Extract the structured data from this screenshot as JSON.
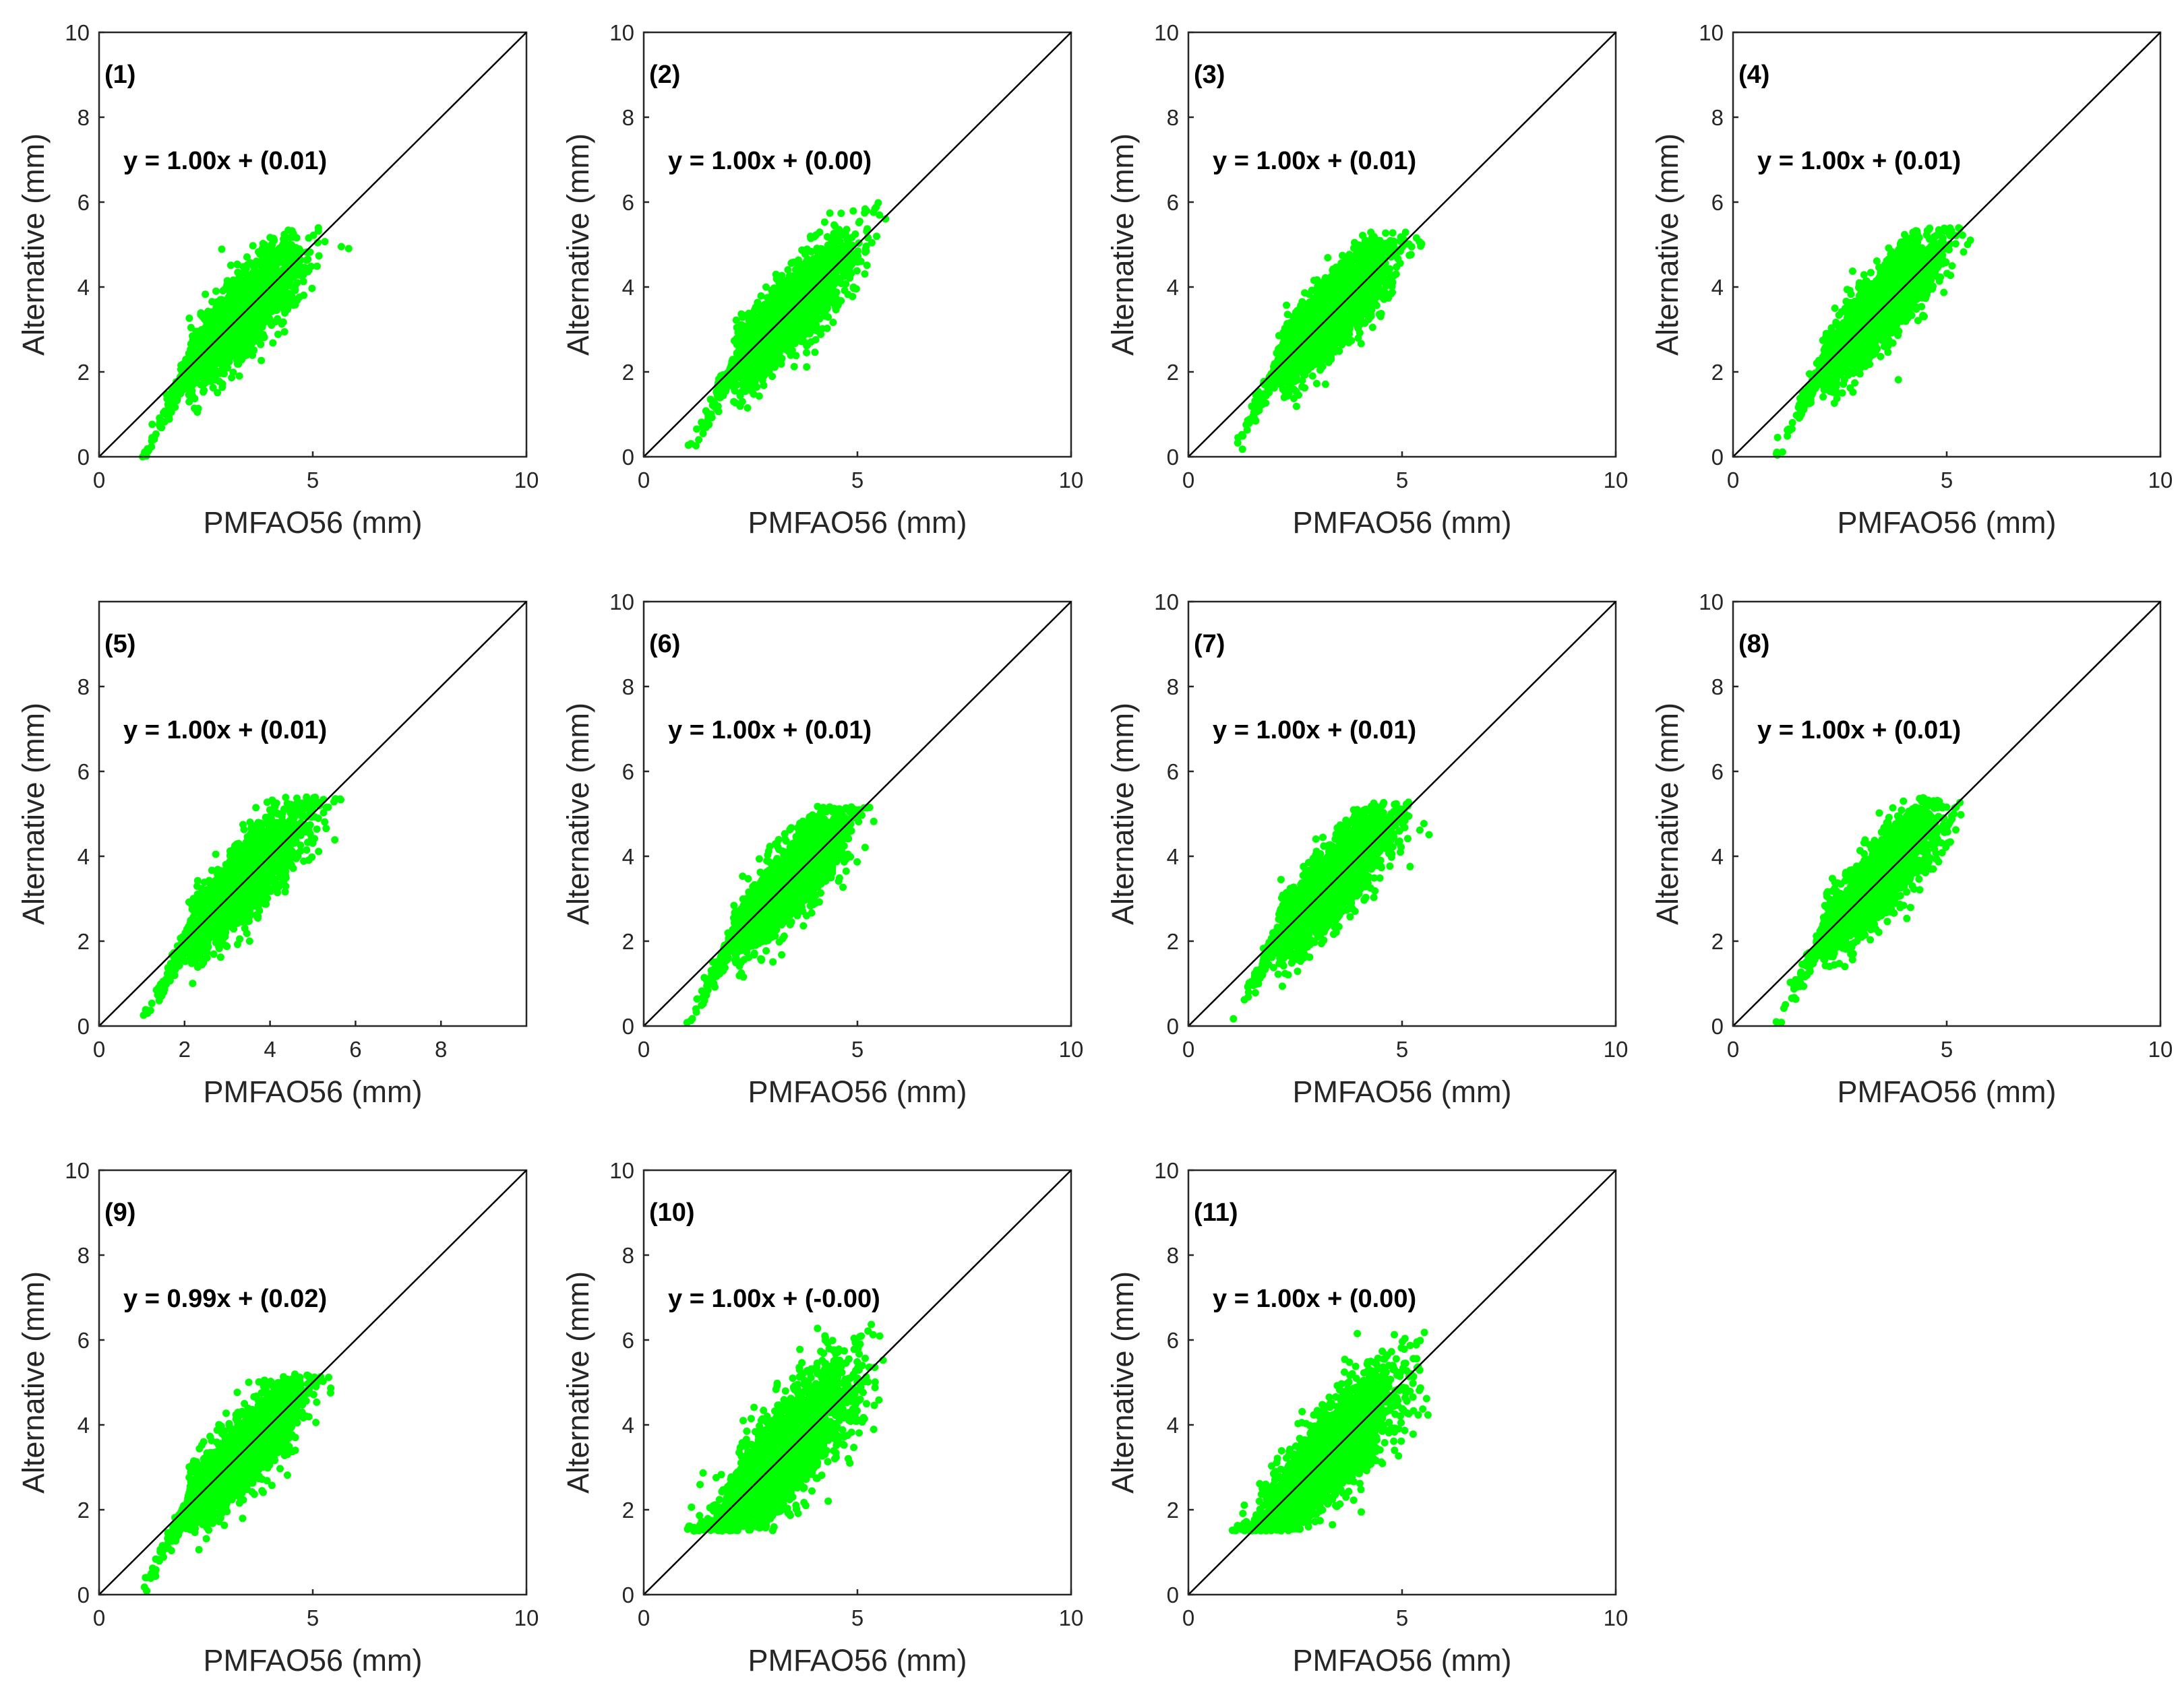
{
  "figure": {
    "point_color": "#00ff00",
    "line_color": "#000000",
    "axis_color": "#262626"
  },
  "chart_data": [
    {
      "type": "scatter",
      "panel_label": "(1)",
      "equation": "y = 1.00x + (0.01)",
      "xlabel": "PMFAO56 (mm)",
      "ylabel": "Alternative (mm)",
      "xlim": [
        0,
        10
      ],
      "ylim": [
        0,
        10
      ],
      "xticks": [
        "0",
        "5",
        "10"
      ],
      "yticks": [
        "0",
        "2",
        "4",
        "6",
        "8",
        "10"
      ],
      "reference_line": "y = x",
      "cloud": {
        "slope": 1.0,
        "intercept": 0.01,
        "x_center": 3.3,
        "x_spread": 0.75,
        "y_noise": 0.55,
        "x_min": 1.0,
        "x_max": 5.9,
        "y_max": 5.4
      }
    },
    {
      "type": "scatter",
      "panel_label": "(2)",
      "equation": "y = 1.00x + (0.00)",
      "xlabel": "PMFAO56 (mm)",
      "ylabel": "Alternative (mm)",
      "xlim": [
        0,
        10
      ],
      "ylim": [
        0,
        10
      ],
      "xticks": [
        "0",
        "5",
        "10"
      ],
      "yticks": [
        "0",
        "2",
        "4",
        "6",
        "8",
        "10"
      ],
      "reference_line": "y = x",
      "cloud": {
        "slope": 1.0,
        "intercept": 0.0,
        "x_center": 3.3,
        "x_spread": 0.75,
        "y_noise": 0.55,
        "x_min": 1.0,
        "x_max": 5.9,
        "y_max": 6.2
      }
    },
    {
      "type": "scatter",
      "panel_label": "(3)",
      "equation": "y = 1.00x + (0.01)",
      "xlabel": "PMFAO56 (mm)",
      "ylabel": "Alternative (mm)",
      "xlim": [
        0,
        10
      ],
      "ylim": [
        0,
        10
      ],
      "xticks": [
        "0",
        "5",
        "10"
      ],
      "yticks": [
        "0",
        "2",
        "4",
        "6",
        "8",
        "10"
      ],
      "reference_line": "y = x",
      "cloud": {
        "slope": 1.0,
        "intercept": 0.01,
        "x_center": 3.3,
        "x_spread": 0.75,
        "y_noise": 0.55,
        "x_min": 1.0,
        "x_max": 5.9,
        "y_max": 5.3
      }
    },
    {
      "type": "scatter",
      "panel_label": "(4)",
      "equation": "y = 1.00x + (0.01)",
      "xlabel": "PMFAO56 (mm)",
      "ylabel": "Alternative (mm)",
      "xlim": [
        0,
        10
      ],
      "ylim": [
        0,
        10
      ],
      "xticks": [
        "0",
        "5",
        "10"
      ],
      "yticks": [
        "0",
        "2",
        "4",
        "6",
        "8",
        "10"
      ],
      "reference_line": "y = x",
      "cloud": {
        "slope": 1.0,
        "intercept": 0.01,
        "x_center": 3.3,
        "x_spread": 0.75,
        "y_noise": 0.55,
        "x_min": 1.0,
        "x_max": 5.9,
        "y_max": 5.4
      }
    },
    {
      "type": "scatter",
      "panel_label": "(5)",
      "equation": "y = 1.00x + (0.01)",
      "xlabel": "PMFAO56 (mm)",
      "ylabel": "Alternative (mm)",
      "xlim": [
        0,
        10
      ],
      "ylim": [
        0,
        10
      ],
      "xticks": [
        "0",
        "2",
        "4",
        "6",
        "8"
      ],
      "yticks": [
        "0",
        "2",
        "4",
        "6",
        "8"
      ],
      "reference_line": "y = x",
      "cloud": {
        "slope": 1.0,
        "intercept": 0.01,
        "x_center": 3.3,
        "x_spread": 0.75,
        "y_noise": 0.55,
        "x_min": 1.0,
        "x_max": 5.9,
        "y_max": 5.4
      }
    },
    {
      "type": "scatter",
      "panel_label": "(6)",
      "equation": "y = 1.00x + (0.01)",
      "xlabel": "PMFAO56 (mm)",
      "ylabel": "Alternative (mm)",
      "xlim": [
        0,
        10
      ],
      "ylim": [
        0,
        10
      ],
      "xticks": [
        "0",
        "5",
        "10"
      ],
      "yticks": [
        "0",
        "2",
        "4",
        "6",
        "8",
        "10"
      ],
      "reference_line": "y = x",
      "cloud": {
        "slope": 1.0,
        "intercept": 0.01,
        "x_center": 3.3,
        "x_spread": 0.75,
        "y_noise": 0.55,
        "x_min": 1.0,
        "x_max": 5.9,
        "y_max": 5.2
      }
    },
    {
      "type": "scatter",
      "panel_label": "(7)",
      "equation": "y = 1.00x + (0.01)",
      "xlabel": "PMFAO56 (mm)",
      "ylabel": "Alternative (mm)",
      "xlim": [
        0,
        10
      ],
      "ylim": [
        0,
        10
      ],
      "xticks": [
        "0",
        "5",
        "10"
      ],
      "yticks": [
        "0",
        "2",
        "4",
        "6",
        "8",
        "10"
      ],
      "reference_line": "y = x",
      "cloud": {
        "slope": 1.0,
        "intercept": 0.01,
        "x_center": 3.3,
        "x_spread": 0.75,
        "y_noise": 0.55,
        "x_min": 1.0,
        "x_max": 5.9,
        "y_max": 5.3
      }
    },
    {
      "type": "scatter",
      "panel_label": "(8)",
      "equation": "y = 1.00x + (0.01)",
      "xlabel": "PMFAO56 (mm)",
      "ylabel": "Alternative (mm)",
      "xlim": [
        0,
        10
      ],
      "ylim": [
        0,
        10
      ],
      "xticks": [
        "0",
        "5",
        "10"
      ],
      "yticks": [
        "0",
        "2",
        "4",
        "6",
        "8",
        "10"
      ],
      "reference_line": "y = x",
      "cloud": {
        "slope": 1.0,
        "intercept": 0.01,
        "x_center": 3.3,
        "x_spread": 0.75,
        "y_noise": 0.55,
        "x_min": 1.0,
        "x_max": 5.9,
        "y_max": 5.4
      }
    },
    {
      "type": "scatter",
      "panel_label": "(9)",
      "equation": "y = 0.99x + (0.02)",
      "xlabel": "PMFAO56 (mm)",
      "ylabel": "Alternative (mm)",
      "xlim": [
        0,
        10
      ],
      "ylim": [
        0,
        10
      ],
      "xticks": [
        "0",
        "5",
        "10"
      ],
      "yticks": [
        "0",
        "2",
        "4",
        "6",
        "8",
        "10"
      ],
      "reference_line": "y = x",
      "cloud": {
        "slope": 0.99,
        "intercept": 0.02,
        "x_center": 3.3,
        "x_spread": 0.75,
        "y_noise": 0.55,
        "x_min": 1.0,
        "x_max": 5.9,
        "y_max": 5.2
      }
    },
    {
      "type": "scatter",
      "panel_label": "(10)",
      "equation": "y = 1.00x + (-0.00)",
      "xlabel": "PMFAO56 (mm)",
      "ylabel": "Alternative (mm)",
      "xlim": [
        0,
        10
      ],
      "ylim": [
        0,
        10
      ],
      "xticks": [
        "0",
        "5",
        "10"
      ],
      "yticks": [
        "0",
        "2",
        "4",
        "6",
        "8",
        "10"
      ],
      "reference_line": "y = x",
      "cloud": {
        "slope": 1.0,
        "intercept": 0.0,
        "x_center": 3.3,
        "x_spread": 0.8,
        "y_noise": 0.75,
        "x_min": 1.0,
        "x_max": 5.9,
        "y_min": 1.5,
        "y_max": 6.4
      }
    },
    {
      "type": "scatter",
      "panel_label": "(11)",
      "equation": "y = 1.00x + (0.00)",
      "xlabel": "PMFAO56 (mm)",
      "ylabel": "Alternative (mm)",
      "xlim": [
        0,
        10
      ],
      "ylim": [
        0,
        10
      ],
      "xticks": [
        "0",
        "5",
        "10"
      ],
      "yticks": [
        "0",
        "2",
        "4",
        "6",
        "8",
        "10"
      ],
      "reference_line": "y = x",
      "cloud": {
        "slope": 1.0,
        "intercept": 0.0,
        "x_center": 3.3,
        "x_spread": 0.8,
        "y_noise": 0.7,
        "x_min": 1.0,
        "x_max": 5.9,
        "y_min": 1.5,
        "y_max": 6.2
      }
    }
  ]
}
